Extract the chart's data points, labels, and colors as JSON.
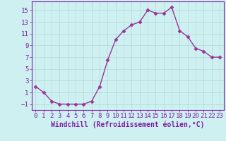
{
  "x": [
    0,
    1,
    2,
    3,
    4,
    5,
    6,
    7,
    8,
    9,
    10,
    11,
    12,
    13,
    14,
    15,
    16,
    17,
    18,
    19,
    20,
    21,
    22,
    23
  ],
  "y": [
    2,
    1,
    -0.5,
    -1,
    -1,
    -1,
    -1,
    -0.5,
    2,
    6.5,
    10,
    11.5,
    12.5,
    13,
    15,
    14.5,
    14.5,
    15.5,
    11.5,
    10.5,
    8.5,
    8,
    7,
    7
  ],
  "line_color": "#993399",
  "marker": "D",
  "marker_size": 2.5,
  "bg_color": "#cff0f0",
  "grid_color": "#b0d8d8",
  "xlabel": "Windchill (Refroidissement éolien,°C)",
  "xlabel_fontsize": 7,
  "xlabel_color": "#7b1fa2",
  "xlim": [
    -0.5,
    23.5
  ],
  "ylim": [
    -2,
    16.5
  ],
  "yticks": [
    -1,
    1,
    3,
    5,
    7,
    9,
    11,
    13,
    15
  ],
  "xticks": [
    0,
    1,
    2,
    3,
    4,
    5,
    6,
    7,
    8,
    9,
    10,
    11,
    12,
    13,
    14,
    15,
    16,
    17,
    18,
    19,
    20,
    21,
    22,
    23
  ],
  "tick_fontsize": 6.5,
  "tick_color": "#7b1fa2",
  "line_width": 1.0,
  "spine_color": "#7b1fa2"
}
